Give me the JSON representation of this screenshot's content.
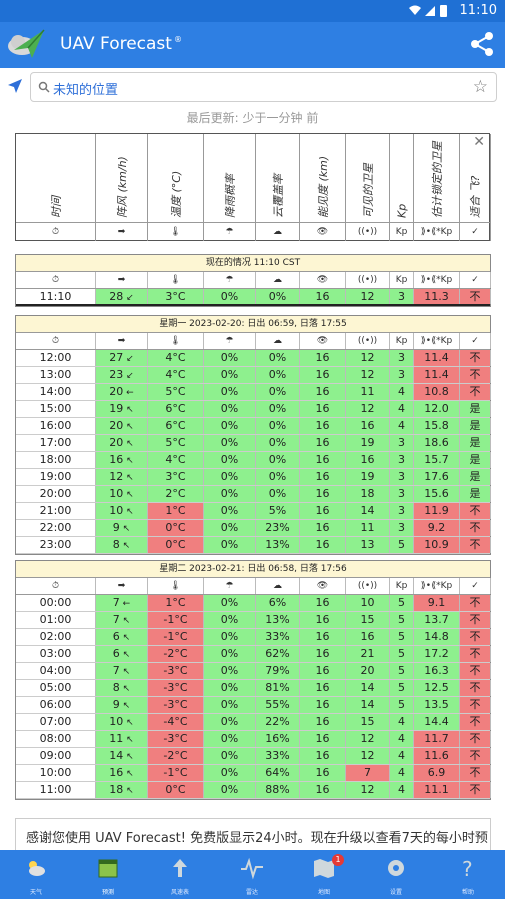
{
  "status_bar": {
    "time": "11:10"
  },
  "app": {
    "title": "UAV Forecast",
    "title_mark": "®"
  },
  "search": {
    "placeholder": "未知的位置"
  },
  "last_updated": "最后更新: 少于一分钟 前",
  "columns": [
    {
      "label": "时间",
      "icon": "⏱"
    },
    {
      "label": "阵风 (km/h)",
      "icon": "➡"
    },
    {
      "label": "温度 (°C)",
      "icon": "🌡"
    },
    {
      "label": "降雨概率",
      "icon": "☂"
    },
    {
      "label": "云覆盖率",
      "icon": "☁"
    },
    {
      "label": "能见度 (km)",
      "icon": "👁"
    },
    {
      "label": "可见的卫星",
      "icon": "((•))"
    },
    {
      "label": "Kp",
      "icon": "Kp"
    },
    {
      "label": "估计锁定的卫星",
      "icon": "⟫•⟪*Kp"
    },
    {
      "label": "适合 飞?",
      "icon": "✓"
    }
  ],
  "current": {
    "title": "现在的情况 11:10 CST",
    "row": {
      "time": "11:10",
      "gust": "28",
      "dir": "↙",
      "temp": "3°C",
      "rain": "0%",
      "cloud": "0%",
      "vis": "16",
      "sats": "12",
      "kp": "3",
      "locked": "11.3",
      "fly": "不"
    }
  },
  "days": [
    {
      "title": "星期一 2023-02-20: 日出 06:59, 日落 17:55",
      "rows": [
        {
          "time": "12:00",
          "gust": "27",
          "dir": "↙",
          "temp": "4°C",
          "rain": "0%",
          "cloud": "0%",
          "vis": "16",
          "sats": "12",
          "kp": "3",
          "locked": "11.4",
          "fly": "不"
        },
        {
          "time": "13:00",
          "gust": "23",
          "dir": "↙",
          "temp": "4°C",
          "rain": "0%",
          "cloud": "0%",
          "vis": "16",
          "sats": "12",
          "kp": "3",
          "locked": "11.4",
          "fly": "不"
        },
        {
          "time": "14:00",
          "gust": "20",
          "dir": "←",
          "temp": "5°C",
          "rain": "0%",
          "cloud": "0%",
          "vis": "16",
          "sats": "11",
          "kp": "4",
          "locked": "10.8",
          "fly": "不"
        },
        {
          "time": "15:00",
          "gust": "19",
          "dir": "↖",
          "temp": "6°C",
          "rain": "0%",
          "cloud": "0%",
          "vis": "16",
          "sats": "12",
          "kp": "4",
          "locked": "12.0",
          "fly": "是"
        },
        {
          "time": "16:00",
          "gust": "20",
          "dir": "↖",
          "temp": "6°C",
          "rain": "0%",
          "cloud": "0%",
          "vis": "16",
          "sats": "16",
          "kp": "4",
          "locked": "15.8",
          "fly": "是"
        },
        {
          "time": "17:00",
          "gust": "20",
          "dir": "↖",
          "temp": "5°C",
          "rain": "0%",
          "cloud": "0%",
          "vis": "16",
          "sats": "19",
          "kp": "3",
          "locked": "18.6",
          "fly": "是"
        },
        {
          "time": "18:00",
          "gust": "16",
          "dir": "↖",
          "temp": "4°C",
          "rain": "0%",
          "cloud": "0%",
          "vis": "16",
          "sats": "16",
          "kp": "3",
          "locked": "15.7",
          "fly": "是"
        },
        {
          "time": "19:00",
          "gust": "12",
          "dir": "↖",
          "temp": "3°C",
          "rain": "0%",
          "cloud": "0%",
          "vis": "16",
          "sats": "19",
          "kp": "3",
          "locked": "17.6",
          "fly": "是"
        },
        {
          "time": "20:00",
          "gust": "10",
          "dir": "↖",
          "temp": "2°C",
          "rain": "0%",
          "cloud": "0%",
          "vis": "16",
          "sats": "18",
          "kp": "3",
          "locked": "15.6",
          "fly": "是"
        },
        {
          "time": "21:00",
          "gust": "10",
          "dir": "↖",
          "temp": "1°C",
          "rain": "0%",
          "cloud": "5%",
          "vis": "16",
          "sats": "14",
          "kp": "3",
          "locked": "11.9",
          "fly": "不"
        },
        {
          "time": "22:00",
          "gust": "9",
          "dir": "↖",
          "temp": "0°C",
          "rain": "0%",
          "cloud": "23%",
          "vis": "16",
          "sats": "11",
          "kp": "3",
          "locked": "9.2",
          "fly": "不"
        },
        {
          "time": "23:00",
          "gust": "8",
          "dir": "↖",
          "temp": "0°C",
          "rain": "0%",
          "cloud": "13%",
          "vis": "16",
          "sats": "13",
          "kp": "5",
          "locked": "10.9",
          "fly": "不"
        }
      ]
    },
    {
      "title": "星期二 2023-02-21: 日出 06:58, 日落 17:56",
      "rows": [
        {
          "time": "00:00",
          "gust": "7",
          "dir": "←",
          "temp": "1°C",
          "rain": "0%",
          "cloud": "6%",
          "vis": "16",
          "sats": "10",
          "kp": "5",
          "locked": "9.1",
          "fly": "不"
        },
        {
          "time": "01:00",
          "gust": "7",
          "dir": "↖",
          "temp": "-1°C",
          "rain": "0%",
          "cloud": "13%",
          "vis": "16",
          "sats": "15",
          "kp": "5",
          "locked": "13.7",
          "fly": "不"
        },
        {
          "time": "02:00",
          "gust": "6",
          "dir": "↖",
          "temp": "-1°C",
          "rain": "0%",
          "cloud": "33%",
          "vis": "16",
          "sats": "16",
          "kp": "5",
          "locked": "14.8",
          "fly": "不"
        },
        {
          "time": "03:00",
          "gust": "6",
          "dir": "↖",
          "temp": "-2°C",
          "rain": "0%",
          "cloud": "62%",
          "vis": "16",
          "sats": "21",
          "kp": "5",
          "locked": "17.2",
          "fly": "不"
        },
        {
          "time": "04:00",
          "gust": "7",
          "dir": "↖",
          "temp": "-3°C",
          "rain": "0%",
          "cloud": "79%",
          "vis": "16",
          "sats": "20",
          "kp": "5",
          "locked": "16.3",
          "fly": "不"
        },
        {
          "time": "05:00",
          "gust": "8",
          "dir": "↖",
          "temp": "-3°C",
          "rain": "0%",
          "cloud": "81%",
          "vis": "16",
          "sats": "14",
          "kp": "5",
          "locked": "12.5",
          "fly": "不"
        },
        {
          "time": "06:00",
          "gust": "9",
          "dir": "↖",
          "temp": "-3°C",
          "rain": "0%",
          "cloud": "55%",
          "vis": "16",
          "sats": "14",
          "kp": "5",
          "locked": "13.5",
          "fly": "不"
        },
        {
          "time": "07:00",
          "gust": "10",
          "dir": "↖",
          "temp": "-4°C",
          "rain": "0%",
          "cloud": "22%",
          "vis": "16",
          "sats": "15",
          "kp": "4",
          "locked": "14.4",
          "fly": "不"
        },
        {
          "time": "08:00",
          "gust": "11",
          "dir": "↖",
          "temp": "-3°C",
          "rain": "0%",
          "cloud": "16%",
          "vis": "16",
          "sats": "12",
          "kp": "4",
          "locked": "11.7",
          "fly": "不"
        },
        {
          "time": "09:00",
          "gust": "14",
          "dir": "↖",
          "temp": "-2°C",
          "rain": "0%",
          "cloud": "33%",
          "vis": "16",
          "sats": "12",
          "kp": "4",
          "locked": "11.6",
          "fly": "不"
        },
        {
          "time": "10:00",
          "gust": "16",
          "dir": "↖",
          "temp": "-1°C",
          "rain": "0%",
          "cloud": "64%",
          "vis": "16",
          "sats": "7",
          "kp": "4",
          "locked": "6.9",
          "fly": "不"
        },
        {
          "time": "11:00",
          "gust": "18",
          "dir": "↖",
          "temp": "0°C",
          "rain": "0%",
          "cloud": "88%",
          "vis": "16",
          "sats": "12",
          "kp": "4",
          "locked": "11.1",
          "fly": "不"
        }
      ]
    }
  ],
  "promo": "感谢您使用 UAV Forecast! 免费版显示24小时。现在升级以查看7天的每小时预",
  "nav": [
    {
      "label": "天气",
      "icon": "weather-icon"
    },
    {
      "label": "预测",
      "icon": "forecast-icon",
      "active": true
    },
    {
      "label": "风速表",
      "icon": "wind-arrow-icon"
    },
    {
      "label": "雷达",
      "icon": "pulse-icon"
    },
    {
      "label": "地图",
      "icon": "map-icon",
      "badge": "1"
    },
    {
      "label": "设置",
      "icon": "gear-icon"
    },
    {
      "label": "帮助",
      "icon": "help-icon"
    }
  ],
  "colors": {
    "green": "#8ef08e",
    "red": "#f07f7f",
    "brand": "#2e7fe3",
    "section_title": "#fdf6d3"
  }
}
